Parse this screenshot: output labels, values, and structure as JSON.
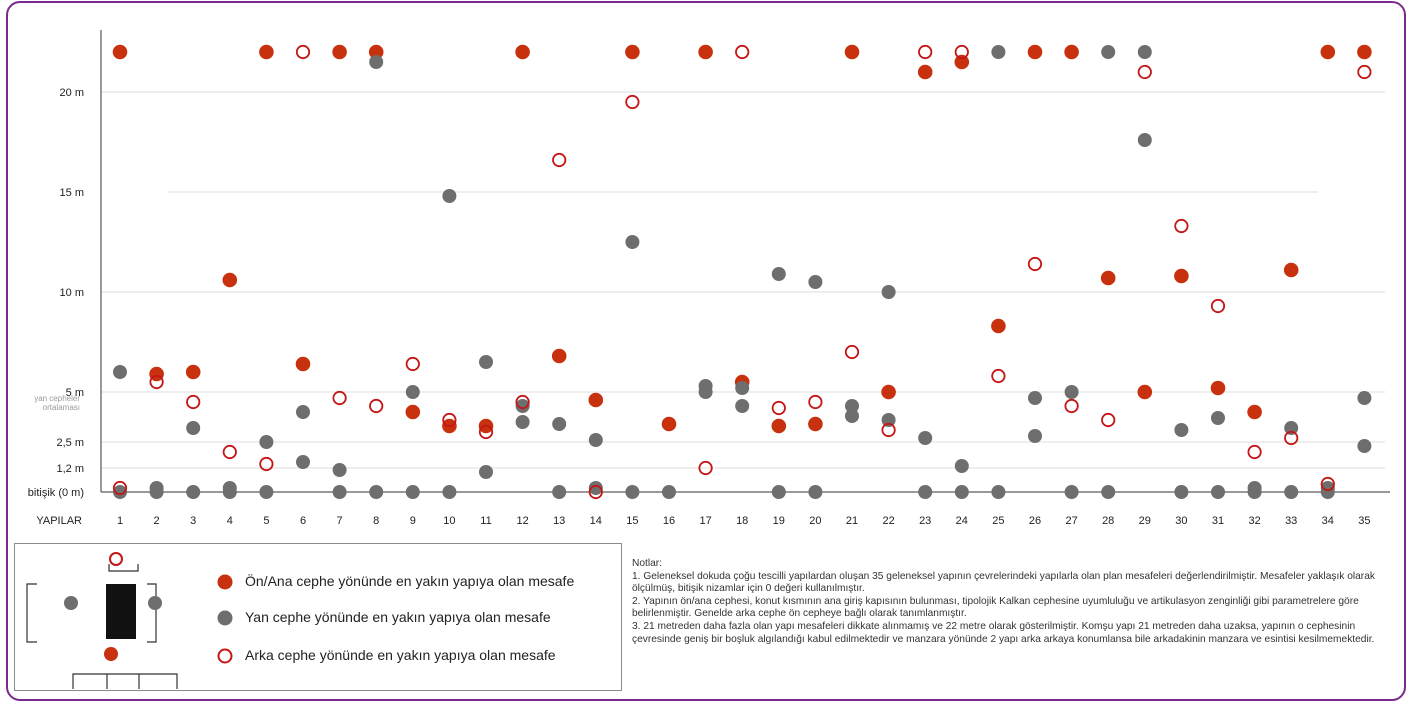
{
  "colors": {
    "front": "#c8310e",
    "side": "#6e6e6e",
    "rear": "#c41616",
    "grid": "#e4e4e4",
    "frame": "#7a2a8c"
  },
  "chart_data": {
    "type": "scatter",
    "title": "",
    "xlabel": "YAPILAR",
    "ylabel": "",
    "categories": [
      "1",
      "2",
      "3",
      "4",
      "5",
      "6",
      "7",
      "8",
      "9",
      "10",
      "11",
      "12",
      "13",
      "14",
      "15",
      "16",
      "17",
      "18",
      "19",
      "20",
      "21",
      "22",
      "23",
      "24",
      "25",
      "26",
      "27",
      "28",
      "29",
      "30",
      "31",
      "32",
      "33",
      "34",
      "35"
    ],
    "ylim": [
      0,
      22
    ],
    "yticks": [
      {
        "value": 0,
        "label": "bitişik (0 m)"
      },
      {
        "value": 1.2,
        "label": "1,2 m"
      },
      {
        "value": 2.5,
        "label": "2,5 m"
      },
      {
        "value": 5,
        "label": "5 m"
      },
      {
        "value": 10,
        "label": "10 m"
      },
      {
        "value": 15,
        "label": "15 m"
      },
      {
        "value": 20,
        "label": "20 m"
      }
    ],
    "reference_label": {
      "value": 4.5,
      "lines": [
        "yan cepheler",
        "ortalaması"
      ]
    },
    "series": [
      {
        "name": "Ön/Ana cephe yönünde en yakın yapıya olan mesafe",
        "style": "filled-red",
        "points": [
          [
            1,
            22
          ],
          [
            2,
            5.9
          ],
          [
            3,
            6
          ],
          [
            4,
            10.6
          ],
          [
            5,
            22
          ],
          [
            6,
            6.4
          ],
          [
            7,
            22
          ],
          [
            8,
            22
          ],
          [
            9,
            4
          ],
          [
            10,
            3.3
          ],
          [
            11,
            3.3
          ],
          [
            12,
            22
          ],
          [
            13,
            6.8
          ],
          [
            14,
            4.6
          ],
          [
            15,
            22
          ],
          [
            16,
            3.4
          ],
          [
            17,
            22
          ],
          [
            18,
            5.5
          ],
          [
            19,
            3.3
          ],
          [
            20,
            3.4
          ],
          [
            21,
            22
          ],
          [
            22,
            5
          ],
          [
            23,
            21
          ],
          [
            24,
            21.5
          ],
          [
            25,
            8.3
          ],
          [
            26,
            22
          ],
          [
            27,
            22
          ],
          [
            28,
            10.7
          ],
          [
            29,
            5
          ],
          [
            30,
            10.8
          ],
          [
            31,
            5.2
          ],
          [
            32,
            4
          ],
          [
            33,
            11.1
          ],
          [
            34,
            22
          ],
          [
            35,
            22
          ]
        ]
      },
      {
        "name": "Yan cephe yönünde en yakın yapıya olan mesafe",
        "style": "filled-gray",
        "points": [
          [
            1,
            6
          ],
          [
            1,
            0
          ],
          [
            2,
            0.2
          ],
          [
            2,
            0
          ],
          [
            3,
            3.2
          ],
          [
            3,
            0
          ],
          [
            4,
            0.2
          ],
          [
            4,
            0
          ],
          [
            5,
            2.5
          ],
          [
            5,
            0
          ],
          [
            6,
            1.5
          ],
          [
            6,
            4
          ],
          [
            7,
            1.1
          ],
          [
            7,
            0
          ],
          [
            8,
            21.5
          ],
          [
            8,
            0
          ],
          [
            9,
            5
          ],
          [
            9,
            0
          ],
          [
            10,
            14.8
          ],
          [
            10,
            0
          ],
          [
            11,
            6.5
          ],
          [
            11,
            1
          ],
          [
            12,
            3.5
          ],
          [
            12,
            4.3
          ],
          [
            13,
            3.4
          ],
          [
            13,
            0
          ],
          [
            14,
            2.6
          ],
          [
            14,
            0.2
          ],
          [
            15,
            12.5
          ],
          [
            15,
            0
          ],
          [
            16,
            0
          ],
          [
            17,
            5.3
          ],
          [
            17,
            5
          ],
          [
            18,
            4.3
          ],
          [
            18,
            5.2
          ],
          [
            19,
            10.9
          ],
          [
            19,
            0
          ],
          [
            20,
            10.5
          ],
          [
            20,
            0
          ],
          [
            21,
            3.8
          ],
          [
            21,
            4.3
          ],
          [
            22,
            3.6
          ],
          [
            22,
            10
          ],
          [
            23,
            2.7
          ],
          [
            23,
            0
          ],
          [
            24,
            1.3
          ],
          [
            24,
            0
          ],
          [
            25,
            22
          ],
          [
            25,
            0
          ],
          [
            26,
            2.8
          ],
          [
            26,
            4.7
          ],
          [
            27,
            5
          ],
          [
            27,
            0
          ],
          [
            28,
            22
          ],
          [
            28,
            0
          ],
          [
            29,
            22
          ],
          [
            29,
            17.6
          ],
          [
            30,
            3.1
          ],
          [
            30,
            0
          ],
          [
            31,
            3.7
          ],
          [
            31,
            0
          ],
          [
            32,
            0.2
          ],
          [
            32,
            0
          ],
          [
            33,
            3.2
          ],
          [
            33,
            0
          ],
          [
            34,
            0.2
          ],
          [
            34,
            0
          ],
          [
            35,
            4.7
          ],
          [
            35,
            2.3
          ]
        ]
      },
      {
        "name": "Arka cephe yönünde en yakın yapıya olan mesafe",
        "style": "open-red",
        "points": [
          [
            1,
            0.2
          ],
          [
            2,
            5.5
          ],
          [
            3,
            4.5
          ],
          [
            4,
            2
          ],
          [
            5,
            1.4
          ],
          [
            6,
            22
          ],
          [
            7,
            4.7
          ],
          [
            8,
            4.3
          ],
          [
            9,
            6.4
          ],
          [
            10,
            3.6
          ],
          [
            11,
            3
          ],
          [
            12,
            4.5
          ],
          [
            13,
            16.6
          ],
          [
            14,
            0
          ],
          [
            15,
            19.5
          ],
          [
            17,
            1.2
          ],
          [
            18,
            22
          ],
          [
            19,
            4.2
          ],
          [
            20,
            4.5
          ],
          [
            21,
            7
          ],
          [
            22,
            3.1
          ],
          [
            23,
            22
          ],
          [
            24,
            22
          ],
          [
            25,
            5.8
          ],
          [
            26,
            11.4
          ],
          [
            27,
            4.3
          ],
          [
            28,
            3.6
          ],
          [
            29,
            21
          ],
          [
            30,
            13.3
          ],
          [
            31,
            9.3
          ],
          [
            32,
            2
          ],
          [
            33,
            2.7
          ],
          [
            34,
            0.4
          ],
          [
            35,
            21
          ]
        ]
      }
    ]
  },
  "legend": {
    "front": "Ön/Ana cephe yönünde en yakın yapıya olan mesafe",
    "side": "Yan cephe yönünde en yakın yapıya olan mesafe",
    "rear": "Arka cephe yönünde en yakın yapıya olan mesafe"
  },
  "notes": {
    "title": "Notlar:",
    "items": [
      "1. Geleneksel dokuda çoğu tescilli yapılardan oluşan 35 geleneksel yapının çevrelerindeki yapılarla olan plan mesafeleri değerlendirilmiştir. Mesafeler yaklaşık olarak ölçülmüş, bitişik nizamlar için 0 değeri kullanılmıştır.",
      "2. Yapının ön/ana cephesi, konut kısmının ana giriş kapısının bulunması, tipolojik Kalkan cephesine uyumluluğu ve artikulasyon zenginliği gibi parametrelere göre belirlenmiştir. Genelde arka cephe ön cepheye bağlı olarak tanımlanmıştır.",
      "3. 21 metreden daha fazla olan yapı mesafeleri dikkate alınmamış ve 22 metre olarak gösterilmiştir. Komşu yapı 21 metreden daha uzaksa, yapının o cephesinin çevresinde geniş bir boşluk algılandığı kabul edilmektedir ve manzara yönünde 2 yapı arka arkaya konumlansa bile arkadakinin manzara ve esintisi kesilmemektedir."
    ]
  }
}
